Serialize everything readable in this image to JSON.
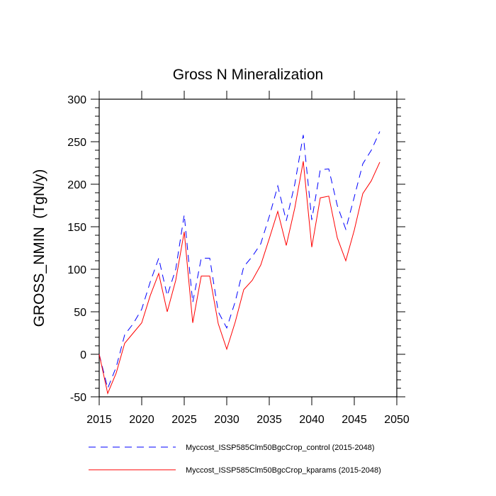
{
  "chart_data": {
    "type": "line",
    "title": "Gross N Mineralization",
    "xlabel": "",
    "ylabel": "GROSS_NMIN  (TgN/y)",
    "xlim": [
      2015,
      2050
    ],
    "ylim": [
      -50,
      300
    ],
    "xticks": [
      2015,
      2020,
      2025,
      2030,
      2035,
      2040,
      2045,
      2050
    ],
    "yticks": [
      -50,
      0,
      50,
      100,
      150,
      200,
      250,
      300
    ],
    "grid": false,
    "legend_placement": "bottom",
    "x": [
      2015,
      2016,
      2017,
      2018,
      2019,
      2020,
      2021,
      2022,
      2023,
      2024,
      2025,
      2026,
      2027,
      2028,
      2029,
      2030,
      2031,
      2032,
      2033,
      2034,
      2035,
      2036,
      2037,
      2038,
      2039,
      2040,
      2041,
      2042,
      2043,
      2044,
      2045,
      2046,
      2047,
      2048
    ],
    "series": [
      {
        "name": "Myccost_ISSP585Clm50BgcCrop_control (2015-2048)",
        "color": "#0000ff",
        "dash": true,
        "values": [
          0,
          -40,
          -15,
          23,
          36,
          53,
          85,
          113,
          69,
          100,
          164,
          61,
          113,
          113,
          50,
          31,
          62,
          103,
          115,
          130,
          162,
          198,
          157,
          200,
          258,
          158,
          217,
          218,
          175,
          147,
          185,
          224,
          240,
          262
        ]
      },
      {
        "name": "Myccost_ISSP585Clm50BgcCrop_kparams (2015-2048)",
        "color": "#ff0000",
        "dash": false,
        "values": [
          0,
          -46,
          -22,
          13,
          25,
          37,
          69,
          95,
          50,
          87,
          144,
          37,
          92,
          92,
          36,
          6,
          38,
          76,
          87,
          105,
          136,
          168,
          128,
          172,
          227,
          126,
          184,
          186,
          137,
          110,
          146,
          189,
          204,
          226
        ]
      }
    ]
  }
}
